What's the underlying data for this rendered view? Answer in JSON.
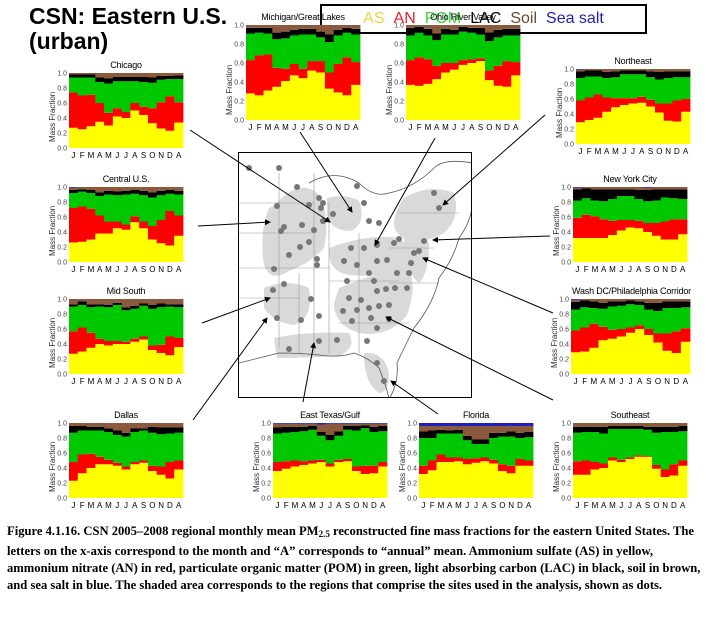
{
  "header": {
    "title_line1": "CSN: Eastern U.S.",
    "title_line2": "(urban)"
  },
  "legend": {
    "items": [
      {
        "label": "AS",
        "color": "#f5e642"
      },
      {
        "label": "AN",
        "color": "#e8202a"
      },
      {
        "label": "POM",
        "color": "#2ad12a"
      },
      {
        "label": "LAC",
        "color": "#000000"
      },
      {
        "label": "Soil",
        "color": "#7a4a2a"
      },
      {
        "label": "Sea salt",
        "color": "#2020c0"
      }
    ]
  },
  "caption": {
    "part1": "Figure 4.1.16. CSN 2005–2008 regional monthly mean PM",
    "sub": "2.5",
    "part2": " reconstructed fine mass fractions for the eastern United States. The letters on the x-axis correspond to the month and “A” corresponds to “annual” mean. Ammonium sulfate (AS) in yellow, ammonium nitrate (AN) in red, particulate organic matter (POM) in green, light absorbing carbon (LAC) in black, soil in brown, and sea salt in blue. The shaded area corresponds to the regions that comprise the sites used in the analysis, shown as dots."
  },
  "chart_data": {
    "type": "bar",
    "stacked": true,
    "categories": [
      "J",
      "F",
      "M",
      "A",
      "M",
      "J",
      "J",
      "A",
      "S",
      "O",
      "N",
      "D",
      "A"
    ],
    "ylabel": "Mass Fraction",
    "yticks": [
      "0.0",
      "0.2",
      "0.4",
      "0.6",
      "0.8",
      "1.0"
    ],
    "ylim": [
      0,
      1
    ],
    "series_names": [
      "AS",
      "AN",
      "POM",
      "LAC",
      "Soil",
      "Sea salt"
    ],
    "series_colors": [
      "#ffff00",
      "#ff0000",
      "#00c800",
      "#000000",
      "#8b5a3c",
      "#2020c0"
    ],
    "panels": [
      {
        "name": "Chicago",
        "AS": [
          0.27,
          0.25,
          0.29,
          0.35,
          0.3,
          0.42,
          0.4,
          0.5,
          0.44,
          0.33,
          0.26,
          0.23,
          0.34
        ],
        "AN": [
          0.47,
          0.45,
          0.42,
          0.25,
          0.17,
          0.11,
          0.08,
          0.1,
          0.11,
          0.2,
          0.35,
          0.46,
          0.27
        ],
        "POM": [
          0.2,
          0.24,
          0.23,
          0.28,
          0.39,
          0.36,
          0.41,
          0.29,
          0.33,
          0.34,
          0.3,
          0.23,
          0.31
        ],
        "LAC": [
          0.04,
          0.04,
          0.04,
          0.06,
          0.07,
          0.06,
          0.06,
          0.06,
          0.07,
          0.07,
          0.05,
          0.04,
          0.05
        ],
        "Soil": [
          0.02,
          0.02,
          0.02,
          0.06,
          0.07,
          0.05,
          0.05,
          0.05,
          0.05,
          0.06,
          0.04,
          0.04,
          0.03
        ],
        "Sea salt": [
          0,
          0,
          0,
          0,
          0,
          0,
          0,
          0,
          0,
          0,
          0,
          0,
          0
        ]
      },
      {
        "name": "Michigan/Great Lakes",
        "AS": [
          0.28,
          0.26,
          0.31,
          0.35,
          0.41,
          0.47,
          0.44,
          0.52,
          0.5,
          0.33,
          0.29,
          0.26,
          0.37
        ],
        "AN": [
          0.35,
          0.42,
          0.38,
          0.2,
          0.13,
          0.12,
          0.1,
          0.1,
          0.12,
          0.17,
          0.3,
          0.4,
          0.24
        ],
        "POM": [
          0.28,
          0.24,
          0.22,
          0.3,
          0.32,
          0.3,
          0.36,
          0.28,
          0.25,
          0.32,
          0.3,
          0.26,
          0.29
        ],
        "LAC": [
          0.06,
          0.05,
          0.06,
          0.07,
          0.07,
          0.06,
          0.06,
          0.06,
          0.06,
          0.08,
          0.06,
          0.05,
          0.06
        ],
        "Soil": [
          0.03,
          0.03,
          0.03,
          0.08,
          0.07,
          0.05,
          0.04,
          0.04,
          0.07,
          0.1,
          0.05,
          0.03,
          0.04
        ],
        "Sea salt": [
          0,
          0,
          0,
          0,
          0,
          0,
          0,
          0,
          0,
          0,
          0,
          0,
          0
        ]
      },
      {
        "name": "Ohio River Valley",
        "AS": [
          0.37,
          0.36,
          0.38,
          0.43,
          0.5,
          0.53,
          0.58,
          0.6,
          0.62,
          0.42,
          0.36,
          0.35,
          0.47
        ],
        "AN": [
          0.26,
          0.3,
          0.26,
          0.14,
          0.1,
          0.07,
          0.05,
          0.04,
          0.03,
          0.1,
          0.21,
          0.27,
          0.14
        ],
        "POM": [
          0.26,
          0.26,
          0.25,
          0.27,
          0.3,
          0.3,
          0.3,
          0.28,
          0.25,
          0.31,
          0.3,
          0.27,
          0.28
        ],
        "LAC": [
          0.08,
          0.06,
          0.07,
          0.07,
          0.06,
          0.05,
          0.05,
          0.05,
          0.07,
          0.09,
          0.08,
          0.07,
          0.07
        ],
        "Soil": [
          0.03,
          0.02,
          0.04,
          0.09,
          0.04,
          0.05,
          0.02,
          0.03,
          0.03,
          0.08,
          0.05,
          0.04,
          0.04
        ],
        "Sea salt": [
          0,
          0,
          0,
          0,
          0,
          0,
          0,
          0,
          0,
          0,
          0,
          0,
          0
        ]
      },
      {
        "name": "Northeast",
        "AS": [
          0.29,
          0.32,
          0.35,
          0.43,
          0.49,
          0.52,
          0.54,
          0.55,
          0.5,
          0.42,
          0.31,
          0.3,
          0.43
        ],
        "AN": [
          0.29,
          0.3,
          0.31,
          0.19,
          0.12,
          0.09,
          0.07,
          0.08,
          0.09,
          0.12,
          0.23,
          0.28,
          0.17
        ],
        "POM": [
          0.3,
          0.28,
          0.24,
          0.26,
          0.28,
          0.32,
          0.32,
          0.3,
          0.3,
          0.32,
          0.34,
          0.31,
          0.29
        ],
        "LAC": [
          0.09,
          0.08,
          0.08,
          0.08,
          0.08,
          0.05,
          0.05,
          0.05,
          0.08,
          0.1,
          0.09,
          0.08,
          0.08
        ],
        "Soil": [
          0.02,
          0.02,
          0.02,
          0.04,
          0.03,
          0.02,
          0.02,
          0.02,
          0.03,
          0.04,
          0.03,
          0.03,
          0.03
        ],
        "Sea salt": [
          0.01,
          0,
          0,
          0,
          0,
          0,
          0,
          0,
          0,
          0,
          0,
          0,
          0
        ]
      },
      {
        "name": "Central U.S.",
        "AS": [
          0.26,
          0.27,
          0.3,
          0.38,
          0.38,
          0.45,
          0.43,
          0.53,
          0.45,
          0.3,
          0.25,
          0.22,
          0.35
        ],
        "AN": [
          0.46,
          0.47,
          0.41,
          0.24,
          0.16,
          0.09,
          0.07,
          0.08,
          0.09,
          0.18,
          0.31,
          0.46,
          0.27
        ],
        "POM": [
          0.2,
          0.2,
          0.21,
          0.26,
          0.36,
          0.35,
          0.4,
          0.3,
          0.35,
          0.38,
          0.33,
          0.23,
          0.28
        ],
        "LAC": [
          0.04,
          0.03,
          0.04,
          0.05,
          0.05,
          0.05,
          0.05,
          0.05,
          0.06,
          0.07,
          0.06,
          0.05,
          0.05
        ],
        "Soil": [
          0.03,
          0.03,
          0.04,
          0.07,
          0.05,
          0.06,
          0.05,
          0.04,
          0.05,
          0.07,
          0.05,
          0.04,
          0.05
        ],
        "Sea salt": [
          0.01,
          0,
          0,
          0,
          0,
          0,
          0,
          0,
          0,
          0,
          0,
          0,
          0
        ]
      },
      {
        "name": "New York City",
        "AS": [
          0.32,
          0.32,
          0.32,
          0.32,
          0.36,
          0.42,
          0.46,
          0.45,
          0.4,
          0.35,
          0.3,
          0.3,
          0.37
        ],
        "AN": [
          0.27,
          0.31,
          0.29,
          0.25,
          0.19,
          0.14,
          0.1,
          0.1,
          0.12,
          0.17,
          0.24,
          0.27,
          0.2
        ],
        "POM": [
          0.23,
          0.22,
          0.21,
          0.24,
          0.29,
          0.32,
          0.32,
          0.29,
          0.29,
          0.3,
          0.32,
          0.28,
          0.27
        ],
        "LAC": [
          0.15,
          0.13,
          0.15,
          0.16,
          0.13,
          0.09,
          0.09,
          0.12,
          0.15,
          0.15,
          0.11,
          0.12,
          0.13
        ],
        "Soil": [
          0.02,
          0.02,
          0.03,
          0.03,
          0.03,
          0.03,
          0.03,
          0.04,
          0.03,
          0.03,
          0.03,
          0.03,
          0.03
        ],
        "Sea salt": [
          0.01,
          0,
          0,
          0,
          0,
          0,
          0,
          0,
          0.01,
          0,
          0,
          0,
          0
        ]
      },
      {
        "name": "Mid South",
        "AS": [
          0.27,
          0.3,
          0.35,
          0.4,
          0.38,
          0.4,
          0.4,
          0.43,
          0.46,
          0.32,
          0.28,
          0.25,
          0.36
        ],
        "AN": [
          0.3,
          0.32,
          0.2,
          0.07,
          0.06,
          0.04,
          0.03,
          0.04,
          0.04,
          0.06,
          0.11,
          0.25,
          0.12
        ],
        "POM": [
          0.33,
          0.3,
          0.34,
          0.43,
          0.45,
          0.48,
          0.42,
          0.4,
          0.41,
          0.49,
          0.5,
          0.4,
          0.41
        ],
        "LAC": [
          0.03,
          0.05,
          0.04,
          0.03,
          0.03,
          0.03,
          0.04,
          0.04,
          0.03,
          0.05,
          0.05,
          0.03,
          0.04
        ],
        "Soil": [
          0.07,
          0.03,
          0.07,
          0.07,
          0.08,
          0.05,
          0.11,
          0.09,
          0.06,
          0.08,
          0.06,
          0.07,
          0.07
        ],
        "Sea salt": [
          0,
          0,
          0,
          0,
          0,
          0,
          0,
          0,
          0,
          0,
          0,
          0,
          0
        ]
      },
      {
        "name": "Wash DC/Philadelphia Corridor",
        "AS": [
          0.29,
          0.3,
          0.35,
          0.45,
          0.47,
          0.5,
          0.55,
          0.6,
          0.52,
          0.42,
          0.31,
          0.28,
          0.43
        ],
        "AN": [
          0.29,
          0.32,
          0.32,
          0.18,
          0.12,
          0.1,
          0.07,
          0.05,
          0.08,
          0.12,
          0.23,
          0.29,
          0.18
        ],
        "POM": [
          0.28,
          0.27,
          0.21,
          0.24,
          0.31,
          0.31,
          0.31,
          0.27,
          0.26,
          0.3,
          0.34,
          0.31,
          0.28
        ],
        "LAC": [
          0.1,
          0.09,
          0.09,
          0.08,
          0.07,
          0.06,
          0.05,
          0.05,
          0.09,
          0.11,
          0.09,
          0.09,
          0.08
        ],
        "Soil": [
          0.03,
          0.02,
          0.03,
          0.05,
          0.03,
          0.03,
          0.02,
          0.03,
          0.05,
          0.05,
          0.03,
          0.03,
          0.03
        ],
        "Sea salt": [
          0.01,
          0,
          0,
          0,
          0,
          0,
          0,
          0,
          0,
          0,
          0,
          0,
          0
        ]
      },
      {
        "name": "Dallas",
        "AS": [
          0.23,
          0.33,
          0.4,
          0.45,
          0.45,
          0.43,
          0.38,
          0.45,
          0.47,
          0.36,
          0.31,
          0.26,
          0.38
        ],
        "AN": [
          0.25,
          0.25,
          0.19,
          0.1,
          0.06,
          0.04,
          0.04,
          0.03,
          0.03,
          0.07,
          0.11,
          0.22,
          0.12
        ],
        "POM": [
          0.39,
          0.32,
          0.31,
          0.35,
          0.37,
          0.37,
          0.4,
          0.4,
          0.4,
          0.44,
          0.43,
          0.38,
          0.37
        ],
        "LAC": [
          0.09,
          0.06,
          0.05,
          0.05,
          0.05,
          0.06,
          0.05,
          0.05,
          0.03,
          0.08,
          0.09,
          0.08,
          0.07
        ],
        "Soil": [
          0.04,
          0.04,
          0.05,
          0.05,
          0.07,
          0.1,
          0.13,
          0.07,
          0.07,
          0.05,
          0.06,
          0.06,
          0.06
        ],
        "Sea salt": [
          0,
          0,
          0,
          0,
          0,
          0,
          0,
          0,
          0,
          0,
          0,
          0,
          0
        ]
      },
      {
        "name": "East Texas/Gulf",
        "AS": [
          0.36,
          0.39,
          0.42,
          0.44,
          0.46,
          0.48,
          0.42,
          0.48,
          0.49,
          0.36,
          0.32,
          0.33,
          0.42
        ],
        "AN": [
          0.12,
          0.1,
          0.08,
          0.05,
          0.04,
          0.03,
          0.04,
          0.03,
          0.03,
          0.06,
          0.11,
          0.1,
          0.06
        ],
        "POM": [
          0.38,
          0.38,
          0.38,
          0.4,
          0.41,
          0.32,
          0.31,
          0.32,
          0.39,
          0.48,
          0.5,
          0.45,
          0.41
        ],
        "LAC": [
          0.08,
          0.08,
          0.07,
          0.06,
          0.05,
          0.05,
          0.07,
          0.06,
          0.05,
          0.06,
          0.04,
          0.07,
          0.07
        ],
        "Soil": [
          0.05,
          0.04,
          0.04,
          0.04,
          0.03,
          0.1,
          0.15,
          0.1,
          0.03,
          0.03,
          0.02,
          0.04,
          0.03
        ],
        "Sea salt": [
          0.01,
          0.01,
          0.01,
          0.01,
          0.01,
          0.02,
          0.01,
          0.01,
          0.01,
          0.01,
          0.01,
          0.01,
          0.01
        ]
      },
      {
        "name": "Florida",
        "AS": [
          0.32,
          0.37,
          0.48,
          0.48,
          0.49,
          0.45,
          0.47,
          0.49,
          0.46,
          0.36,
          0.33,
          0.43,
          0.43
        ],
        "AN": [
          0.11,
          0.13,
          0.1,
          0.06,
          0.05,
          0.07,
          0.06,
          0.05,
          0.05,
          0.09,
          0.1,
          0.09,
          0.07
        ],
        "POM": [
          0.37,
          0.3,
          0.28,
          0.32,
          0.32,
          0.25,
          0.19,
          0.18,
          0.29,
          0.37,
          0.39,
          0.28,
          0.31
        ],
        "LAC": [
          0.09,
          0.1,
          0.05,
          0.04,
          0.05,
          0.06,
          0.06,
          0.06,
          0.07,
          0.05,
          0.07,
          0.07,
          0.07
        ],
        "Soil": [
          0.07,
          0.06,
          0.05,
          0.06,
          0.05,
          0.13,
          0.18,
          0.18,
          0.09,
          0.09,
          0.07,
          0.09,
          0.08
        ],
        "Sea salt": [
          0.04,
          0.04,
          0.04,
          0.04,
          0.04,
          0.04,
          0.04,
          0.04,
          0.04,
          0.04,
          0.04,
          0.04,
          0.04
        ]
      },
      {
        "name": "Southeast",
        "AS": [
          0.31,
          0.31,
          0.38,
          0.4,
          0.5,
          0.48,
          0.52,
          0.55,
          0.55,
          0.39,
          0.28,
          0.3,
          0.43
        ],
        "AN": [
          0.18,
          0.19,
          0.1,
          0.06,
          0.04,
          0.03,
          0.02,
          0.02,
          0.01,
          0.05,
          0.1,
          0.15,
          0.07
        ],
        "POM": [
          0.38,
          0.38,
          0.4,
          0.4,
          0.38,
          0.41,
          0.38,
          0.35,
          0.35,
          0.43,
          0.5,
          0.43,
          0.39
        ],
        "LAC": [
          0.08,
          0.07,
          0.07,
          0.09,
          0.04,
          0.04,
          0.04,
          0.04,
          0.04,
          0.08,
          0.07,
          0.07,
          0.07
        ],
        "Soil": [
          0.05,
          0.05,
          0.05,
          0.05,
          0.04,
          0.04,
          0.04,
          0.04,
          0.05,
          0.05,
          0.05,
          0.05,
          0.04
        ],
        "Sea salt": [
          0,
          0,
          0,
          0,
          0,
          0,
          0,
          0,
          0,
          0,
          0,
          0,
          0
        ]
      }
    ]
  }
}
